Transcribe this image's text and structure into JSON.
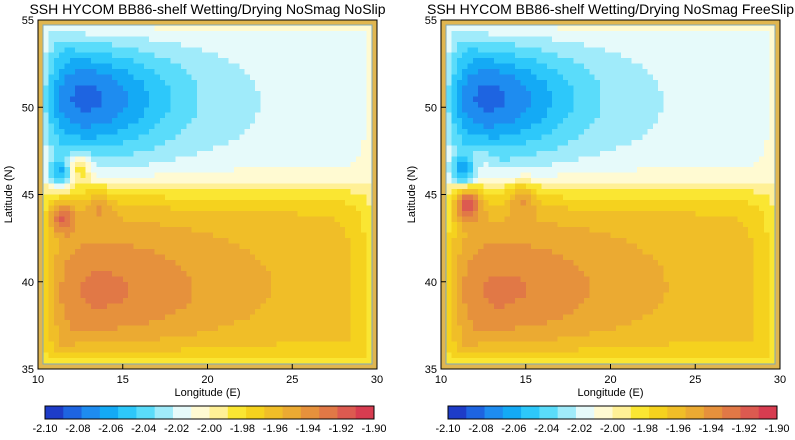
{
  "chart_data": [
    {
      "type": "heatmap",
      "title": "SSH HYCOM BB86-shelf Wetting/Drying NoSmag NoSlip",
      "xlabel": "Longitude (E)",
      "ylabel": "Latitude (N)",
      "xlim": [
        10,
        30
      ],
      "ylim": [
        35,
        55
      ],
      "xticks": [
        "10",
        "15",
        "20",
        "25",
        "30"
      ],
      "yticks": [
        "35",
        "40",
        "45",
        "50",
        "55"
      ],
      "colorbar": {
        "min": -2.1,
        "max": -1.9,
        "ticks": [
          "-2.10",
          "-2.08",
          "-2.06",
          "-2.04",
          "-2.02",
          "-2.00",
          "-1.98",
          "-1.96",
          "-1.94",
          "-1.92",
          "-1.90"
        ],
        "colors": [
          "#1e3cc8",
          "#1e64e1",
          "#1e8cf0",
          "#14aaf5",
          "#2dc8fa",
          "#5adcfa",
          "#a0ebfa",
          "#e6fafa",
          "#fffad2",
          "#fff096",
          "#fae632",
          "#f5d21e",
          "#f0be28",
          "#ebaa32",
          "#e6913c",
          "#e17846",
          "#dc5a50",
          "#d73c50"
        ]
      },
      "features": {
        "north_low_center": [
          12,
          50.5,
          -2.09
        ],
        "south_high_center": [
          13,
          39.5,
          -1.93
        ],
        "eddies": [
          [
            12.3,
            46.5,
            -1.96
          ],
          [
            11.3,
            43.7,
            -1.91
          ],
          [
            13.6,
            44.3,
            -1.95
          ],
          [
            11.3,
            46.2,
            -2.07
          ]
        ]
      }
    },
    {
      "type": "heatmap",
      "title": "SSH HYCOM BB86-shelf Wetting/Drying NoSmag FreeSlip",
      "xlabel": "Longitude (E)",
      "ylabel": "Latitude (N)",
      "xlim": [
        10,
        30
      ],
      "ylim": [
        35,
        55
      ],
      "xticks": [
        "10",
        "15",
        "20",
        "25",
        "30"
      ],
      "yticks": [
        "35",
        "40",
        "45",
        "50",
        "55"
      ],
      "colorbar": {
        "min": -2.1,
        "max": -1.9,
        "ticks": [
          "-2.10",
          "-2.08",
          "-2.06",
          "-2.04",
          "-2.02",
          "-2.00",
          "-1.98",
          "-1.96",
          "-1.94",
          "-1.92",
          "-1.90"
        ],
        "colors": [
          "#1e3cc8",
          "#1e64e1",
          "#1e8cf0",
          "#14aaf5",
          "#2dc8fa",
          "#5adcfa",
          "#a0ebfa",
          "#e6fafa",
          "#fffad2",
          "#fff096",
          "#fae632",
          "#f5d21e",
          "#f0be28",
          "#ebaa32",
          "#e6913c",
          "#e17846",
          "#dc5a50",
          "#d73c50"
        ]
      },
      "features": {
        "north_low_center": [
          12,
          50.5,
          -2.09
        ],
        "south_high_center": [
          12.5,
          39.5,
          -1.93
        ],
        "eddies": [
          [
            11.5,
            44.5,
            -1.9
          ],
          [
            12.2,
            47.0,
            -2.0
          ],
          [
            14.8,
            44.8,
            -1.95
          ],
          [
            11.2,
            46.3,
            -2.07
          ]
        ]
      }
    }
  ]
}
